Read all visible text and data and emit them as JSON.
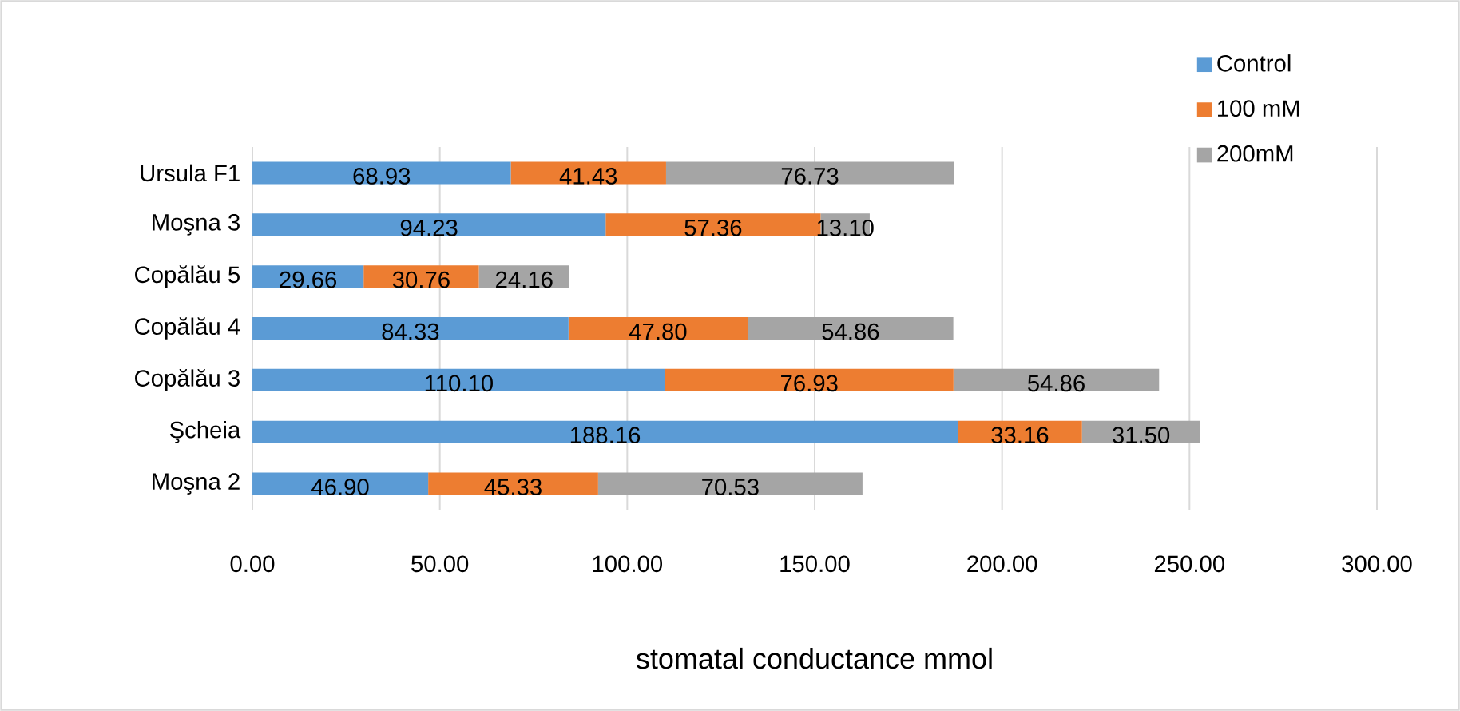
{
  "chart_data": {
    "type": "bar",
    "orientation": "horizontal",
    "stacked": true,
    "xlabel": "stomatal conductance mmol",
    "categories": [
      "Ursula F1",
      "Moşna 3",
      "Copălău 5",
      "Copălău 4",
      "Copălău 3",
      "Şcheia",
      "Moşna 2"
    ],
    "series": [
      {
        "name": "Control",
        "color": "#5b9bd5",
        "values": [
          68.93,
          94.23,
          29.66,
          84.33,
          110.1,
          188.16,
          46.9
        ],
        "value_labels": [
          "68.93",
          "94.23",
          "29.66",
          "84.33",
          "110.10",
          "188.16",
          "46.90"
        ]
      },
      {
        "name": "100 mM",
        "color": "#ed7d31",
        "values": [
          41.43,
          57.36,
          30.76,
          47.8,
          76.93,
          33.16,
          45.33
        ],
        "value_labels": [
          "41.43",
          "57.36",
          "30.76",
          "47.80",
          "76.93",
          "33.16",
          "45.33"
        ]
      },
      {
        "name": "200mM",
        "color": "#a5a5a5",
        "values": [
          76.73,
          13.1,
          24.16,
          54.86,
          54.86,
          31.5,
          70.53
        ],
        "value_labels": [
          "76.73",
          "13.10",
          "24.16",
          "54.86",
          "54.86",
          "31.50",
          "70.53"
        ]
      }
    ],
    "xlim": [
      0,
      300
    ],
    "xticks": [
      {
        "value": 0,
        "label": "0.00"
      },
      {
        "value": 50,
        "label": "50.00"
      },
      {
        "value": 100,
        "label": "100.00"
      },
      {
        "value": 150,
        "label": "150.00"
      },
      {
        "value": 200,
        "label": "200.00"
      },
      {
        "value": 250,
        "label": "250.00"
      },
      {
        "value": 300,
        "label": "300.00"
      }
    ],
    "grid": "x",
    "legend": "top right"
  }
}
